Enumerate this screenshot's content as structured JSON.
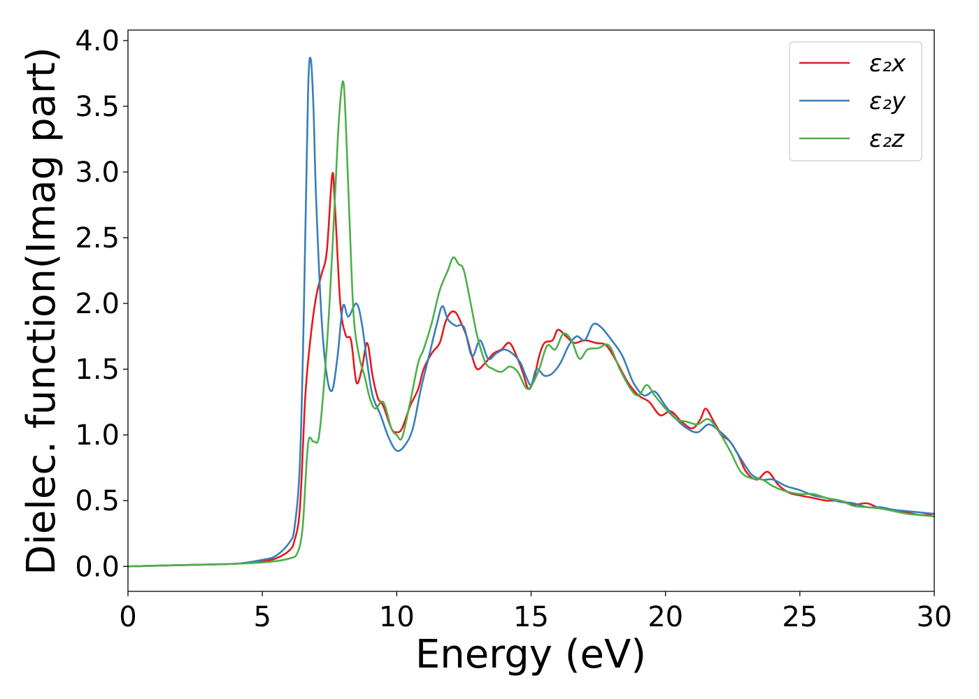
{
  "chart_data": {
    "type": "line",
    "xlabel": "Energy (eV)",
    "ylabel": "Dielec. function(Imag part)",
    "xlim": [
      0,
      30
    ],
    "ylim": [
      -0.19,
      4.08
    ],
    "x_ticks": [
      "0",
      "5",
      "10",
      "15",
      "20",
      "25",
      "30"
    ],
    "y_ticks": [
      "0.0",
      "0.5",
      "1.0",
      "1.5",
      "2.0",
      "2.5",
      "3.0",
      "3.5",
      "4.0"
    ],
    "grid": false,
    "legend_position": "top-right",
    "series": [
      {
        "name": "ε₂x",
        "color": "#e41a1c",
        "x": [
          0,
          2,
          4,
          5,
          5.5,
          6,
          6.2,
          6.4,
          6.6,
          6.8,
          7.0,
          7.2,
          7.4,
          7.6,
          7.7,
          7.9,
          8.1,
          8.3,
          8.5,
          8.7,
          8.9,
          9.1,
          9.3,
          9.5,
          9.8,
          10.0,
          10.2,
          10.5,
          10.8,
          11.0,
          11.3,
          11.6,
          11.8,
          12.0,
          12.2,
          12.4,
          12.6,
          12.8,
          13.0,
          13.3,
          13.6,
          13.9,
          14.2,
          14.5,
          14.7,
          14.9,
          15.1,
          15.3,
          15.5,
          15.8,
          16.0,
          16.3,
          16.6,
          17.0,
          17.4,
          17.8,
          18.2,
          18.6,
          19.0,
          19.4,
          19.8,
          20.2,
          20.6,
          21.0,
          21.3,
          21.5,
          21.8,
          22.1,
          22.4,
          22.7,
          23.0,
          23.4,
          23.8,
          24.2,
          24.6,
          25.0,
          25.5,
          26.0,
          26.5,
          27.0,
          27.5,
          28.0,
          28.5,
          29.0,
          29.5,
          30.0
        ],
        "values": [
          0.0,
          0.01,
          0.02,
          0.04,
          0.06,
          0.12,
          0.2,
          0.45,
          1.3,
          1.75,
          2.05,
          2.22,
          2.4,
          2.98,
          2.75,
          2.0,
          1.76,
          1.72,
          1.4,
          1.5,
          1.7,
          1.45,
          1.28,
          1.22,
          1.05,
          1.02,
          1.05,
          1.22,
          1.35,
          1.5,
          1.62,
          1.7,
          1.85,
          1.93,
          1.93,
          1.85,
          1.75,
          1.6,
          1.5,
          1.55,
          1.62,
          1.65,
          1.7,
          1.58,
          1.47,
          1.35,
          1.42,
          1.6,
          1.7,
          1.72,
          1.8,
          1.75,
          1.7,
          1.72,
          1.7,
          1.68,
          1.55,
          1.4,
          1.3,
          1.25,
          1.15,
          1.18,
          1.1,
          1.05,
          1.12,
          1.2,
          1.1,
          1.0,
          0.95,
          0.85,
          0.72,
          0.66,
          0.72,
          0.62,
          0.56,
          0.54,
          0.52,
          0.5,
          0.5,
          0.47,
          0.48,
          0.44,
          0.43,
          0.41,
          0.39,
          0.4
        ]
      },
      {
        "name": "ε₂y",
        "color": "#377eb8",
        "x": [
          0,
          2,
          4,
          5,
          5.5,
          6,
          6.2,
          6.4,
          6.55,
          6.7,
          6.8,
          6.9,
          7.0,
          7.2,
          7.4,
          7.6,
          7.8,
          8.0,
          8.2,
          8.5,
          8.7,
          8.9,
          9.1,
          9.4,
          9.7,
          10.0,
          10.3,
          10.6,
          10.9,
          11.2,
          11.5,
          11.7,
          11.9,
          12.2,
          12.5,
          12.8,
          13.1,
          13.4,
          13.7,
          14.0,
          14.3,
          14.6,
          14.8,
          15.0,
          15.2,
          15.5,
          15.8,
          16.1,
          16.4,
          16.7,
          17.0,
          17.3,
          17.6,
          18.0,
          18.4,
          18.8,
          19.2,
          19.6,
          20.0,
          20.4,
          20.8,
          21.2,
          21.6,
          22.0,
          22.4,
          22.8,
          23.2,
          23.6,
          24.0,
          24.5,
          25.0,
          25.5,
          26.0,
          26.5,
          27.0,
          27.5,
          28.0,
          28.5,
          29.0,
          29.5,
          30.0
        ],
        "values": [
          0.0,
          0.01,
          0.02,
          0.05,
          0.08,
          0.18,
          0.3,
          0.8,
          2.0,
          3.6,
          3.86,
          3.5,
          2.8,
          1.9,
          1.45,
          1.34,
          1.6,
          1.98,
          1.9,
          2.0,
          1.85,
          1.55,
          1.3,
          1.15,
          0.98,
          0.88,
          0.92,
          1.05,
          1.35,
          1.6,
          1.85,
          1.98,
          1.88,
          1.83,
          1.82,
          1.6,
          1.72,
          1.58,
          1.62,
          1.65,
          1.62,
          1.55,
          1.45,
          1.38,
          1.5,
          1.45,
          1.47,
          1.55,
          1.68,
          1.75,
          1.72,
          1.84,
          1.82,
          1.72,
          1.6,
          1.4,
          1.3,
          1.33,
          1.22,
          1.12,
          1.05,
          1.02,
          1.08,
          1.03,
          0.95,
          0.82,
          0.7,
          0.66,
          0.66,
          0.61,
          0.58,
          0.54,
          0.52,
          0.49,
          0.48,
          0.45,
          0.45,
          0.43,
          0.42,
          0.41,
          0.4
        ]
      },
      {
        "name": "ε₂z",
        "color": "#4daf4a",
        "x": [
          0,
          2,
          4,
          5,
          5.5,
          6,
          6.3,
          6.5,
          6.7,
          6.9,
          7.1,
          7.3,
          7.5,
          7.7,
          7.85,
          8.0,
          8.1,
          8.25,
          8.4,
          8.6,
          8.8,
          9.0,
          9.2,
          9.5,
          9.8,
          10.0,
          10.2,
          10.5,
          10.8,
          11.0,
          11.3,
          11.6,
          11.9,
          12.1,
          12.3,
          12.5,
          12.8,
          13.0,
          13.3,
          13.6,
          13.9,
          14.2,
          14.5,
          14.8,
          15.0,
          15.3,
          15.6,
          15.9,
          16.2,
          16.5,
          16.8,
          17.1,
          17.5,
          17.9,
          18.3,
          18.7,
          19.0,
          19.3,
          19.6,
          20.0,
          20.4,
          20.8,
          21.2,
          21.6,
          22.0,
          22.4,
          22.8,
          23.2,
          23.6,
          24.0,
          24.5,
          25.0,
          25.5,
          26.0,
          26.5,
          27.0,
          27.5,
          28.0,
          28.5,
          29.0,
          29.5,
          30.0
        ],
        "values": [
          0.0,
          0.01,
          0.02,
          0.03,
          0.04,
          0.06,
          0.1,
          0.3,
          0.93,
          0.95,
          0.98,
          1.4,
          2.0,
          2.8,
          3.4,
          3.69,
          3.4,
          2.6,
          1.9,
          1.6,
          1.45,
          1.28,
          1.2,
          1.25,
          1.05,
          1.0,
          0.98,
          1.25,
          1.55,
          1.65,
          1.85,
          2.1,
          2.25,
          2.35,
          2.3,
          2.25,
          1.95,
          1.75,
          1.55,
          1.5,
          1.48,
          1.52,
          1.48,
          1.36,
          1.37,
          1.5,
          1.68,
          1.65,
          1.77,
          1.72,
          1.58,
          1.65,
          1.66,
          1.68,
          1.5,
          1.35,
          1.3,
          1.38,
          1.3,
          1.2,
          1.12,
          1.1,
          1.08,
          1.12,
          1.02,
          0.88,
          0.72,
          0.67,
          0.66,
          0.61,
          0.57,
          0.55,
          0.55,
          0.52,
          0.5,
          0.46,
          0.45,
          0.44,
          0.42,
          0.4,
          0.39,
          0.38
        ]
      }
    ]
  }
}
